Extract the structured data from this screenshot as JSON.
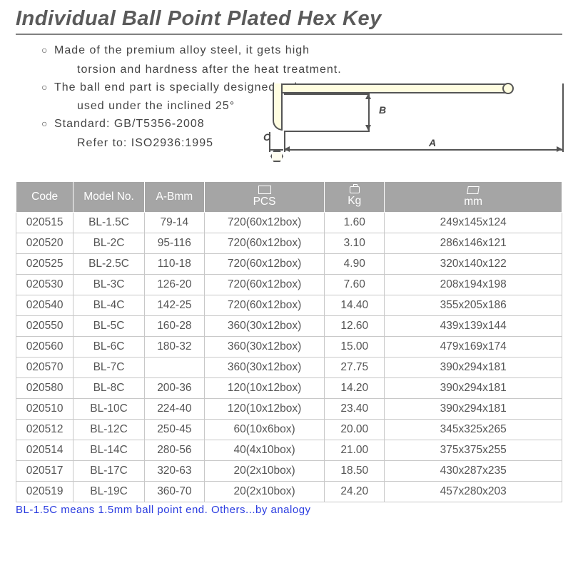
{
  "title": "Individual Ball Point Plated Hex Key",
  "description": {
    "bullet1_line1": "Made of the premium alloy steel, it gets high",
    "bullet1_line2": "torsion and hardness after the heat treatment.",
    "bullet2_line1": "The ball end part is specially designed to be",
    "bullet2_line2": "used under the inclined 25°",
    "bullet3_line1": "Standard: GB/T5356-2008",
    "bullet3_line2": "Refer to: ISO2936:1995"
  },
  "diagram": {
    "label_A": "A",
    "label_B": "B",
    "label_C": "C",
    "tool_fill_color": "#fffde0",
    "line_color": "#555555"
  },
  "table": {
    "header_bg": "#a5a5a5",
    "header_fg": "#ffffff",
    "border_color": "#c8c8c8",
    "columns": [
      "Code",
      "Model No.",
      "A-Bmm",
      "PCS",
      "Kg",
      "mm"
    ],
    "col_icons": [
      null,
      null,
      null,
      "package-icon",
      "weight-icon",
      "box-icon"
    ],
    "col_widths_pct": [
      10.5,
      13,
      11,
      22,
      11,
      32.5
    ],
    "rows": [
      [
        "020515",
        "BL-1.5C",
        "79-14",
        "720(60x12box)",
        "1.60",
        "249x145x124"
      ],
      [
        "020520",
        "BL-2C",
        "95-116",
        "720(60x12box)",
        "3.10",
        "286x146x121"
      ],
      [
        "020525",
        "BL-2.5C",
        "110-18",
        "720(60x12box)",
        "4.90",
        "320x140x122"
      ],
      [
        "020530",
        "BL-3C",
        "126-20",
        "720(60x12box)",
        "7.60",
        "208x194x198"
      ],
      [
        "020540",
        "BL-4C",
        "142-25",
        "720(60x12box)",
        "14.40",
        "355x205x186"
      ],
      [
        "020550",
        "BL-5C",
        "160-28",
        "360(30x12box)",
        "12.60",
        "439x139x144"
      ],
      [
        "020560",
        "BL-6C",
        "180-32",
        "360(30x12box)",
        "15.00",
        "479x169x174"
      ],
      [
        "020570",
        "BL-7C",
        "",
        "360(30x12box)",
        "27.75",
        "390x294x181"
      ],
      [
        "020580",
        "BL-8C",
        "200-36",
        "120(10x12box)",
        "14.20",
        "390x294x181"
      ],
      [
        "020510",
        "BL-10C",
        "224-40",
        "120(10x12box)",
        "23.40",
        "390x294x181"
      ],
      [
        "020512",
        "BL-12C",
        "250-45",
        "60(10x6box)",
        "20.00",
        "345x325x265"
      ],
      [
        "020514",
        "BL-14C",
        "280-56",
        "40(4x10box)",
        "21.00",
        "375x375x255"
      ],
      [
        "020517",
        "BL-17C",
        "320-63",
        "20(2x10box)",
        "18.50",
        "430x287x235"
      ],
      [
        "020519",
        "BL-19C",
        "360-70",
        "20(2x10box)",
        "24.20",
        "457x280x203"
      ]
    ]
  },
  "footnote": "BL-1.5C means 1.5mm ball point end. Others...by analogy"
}
